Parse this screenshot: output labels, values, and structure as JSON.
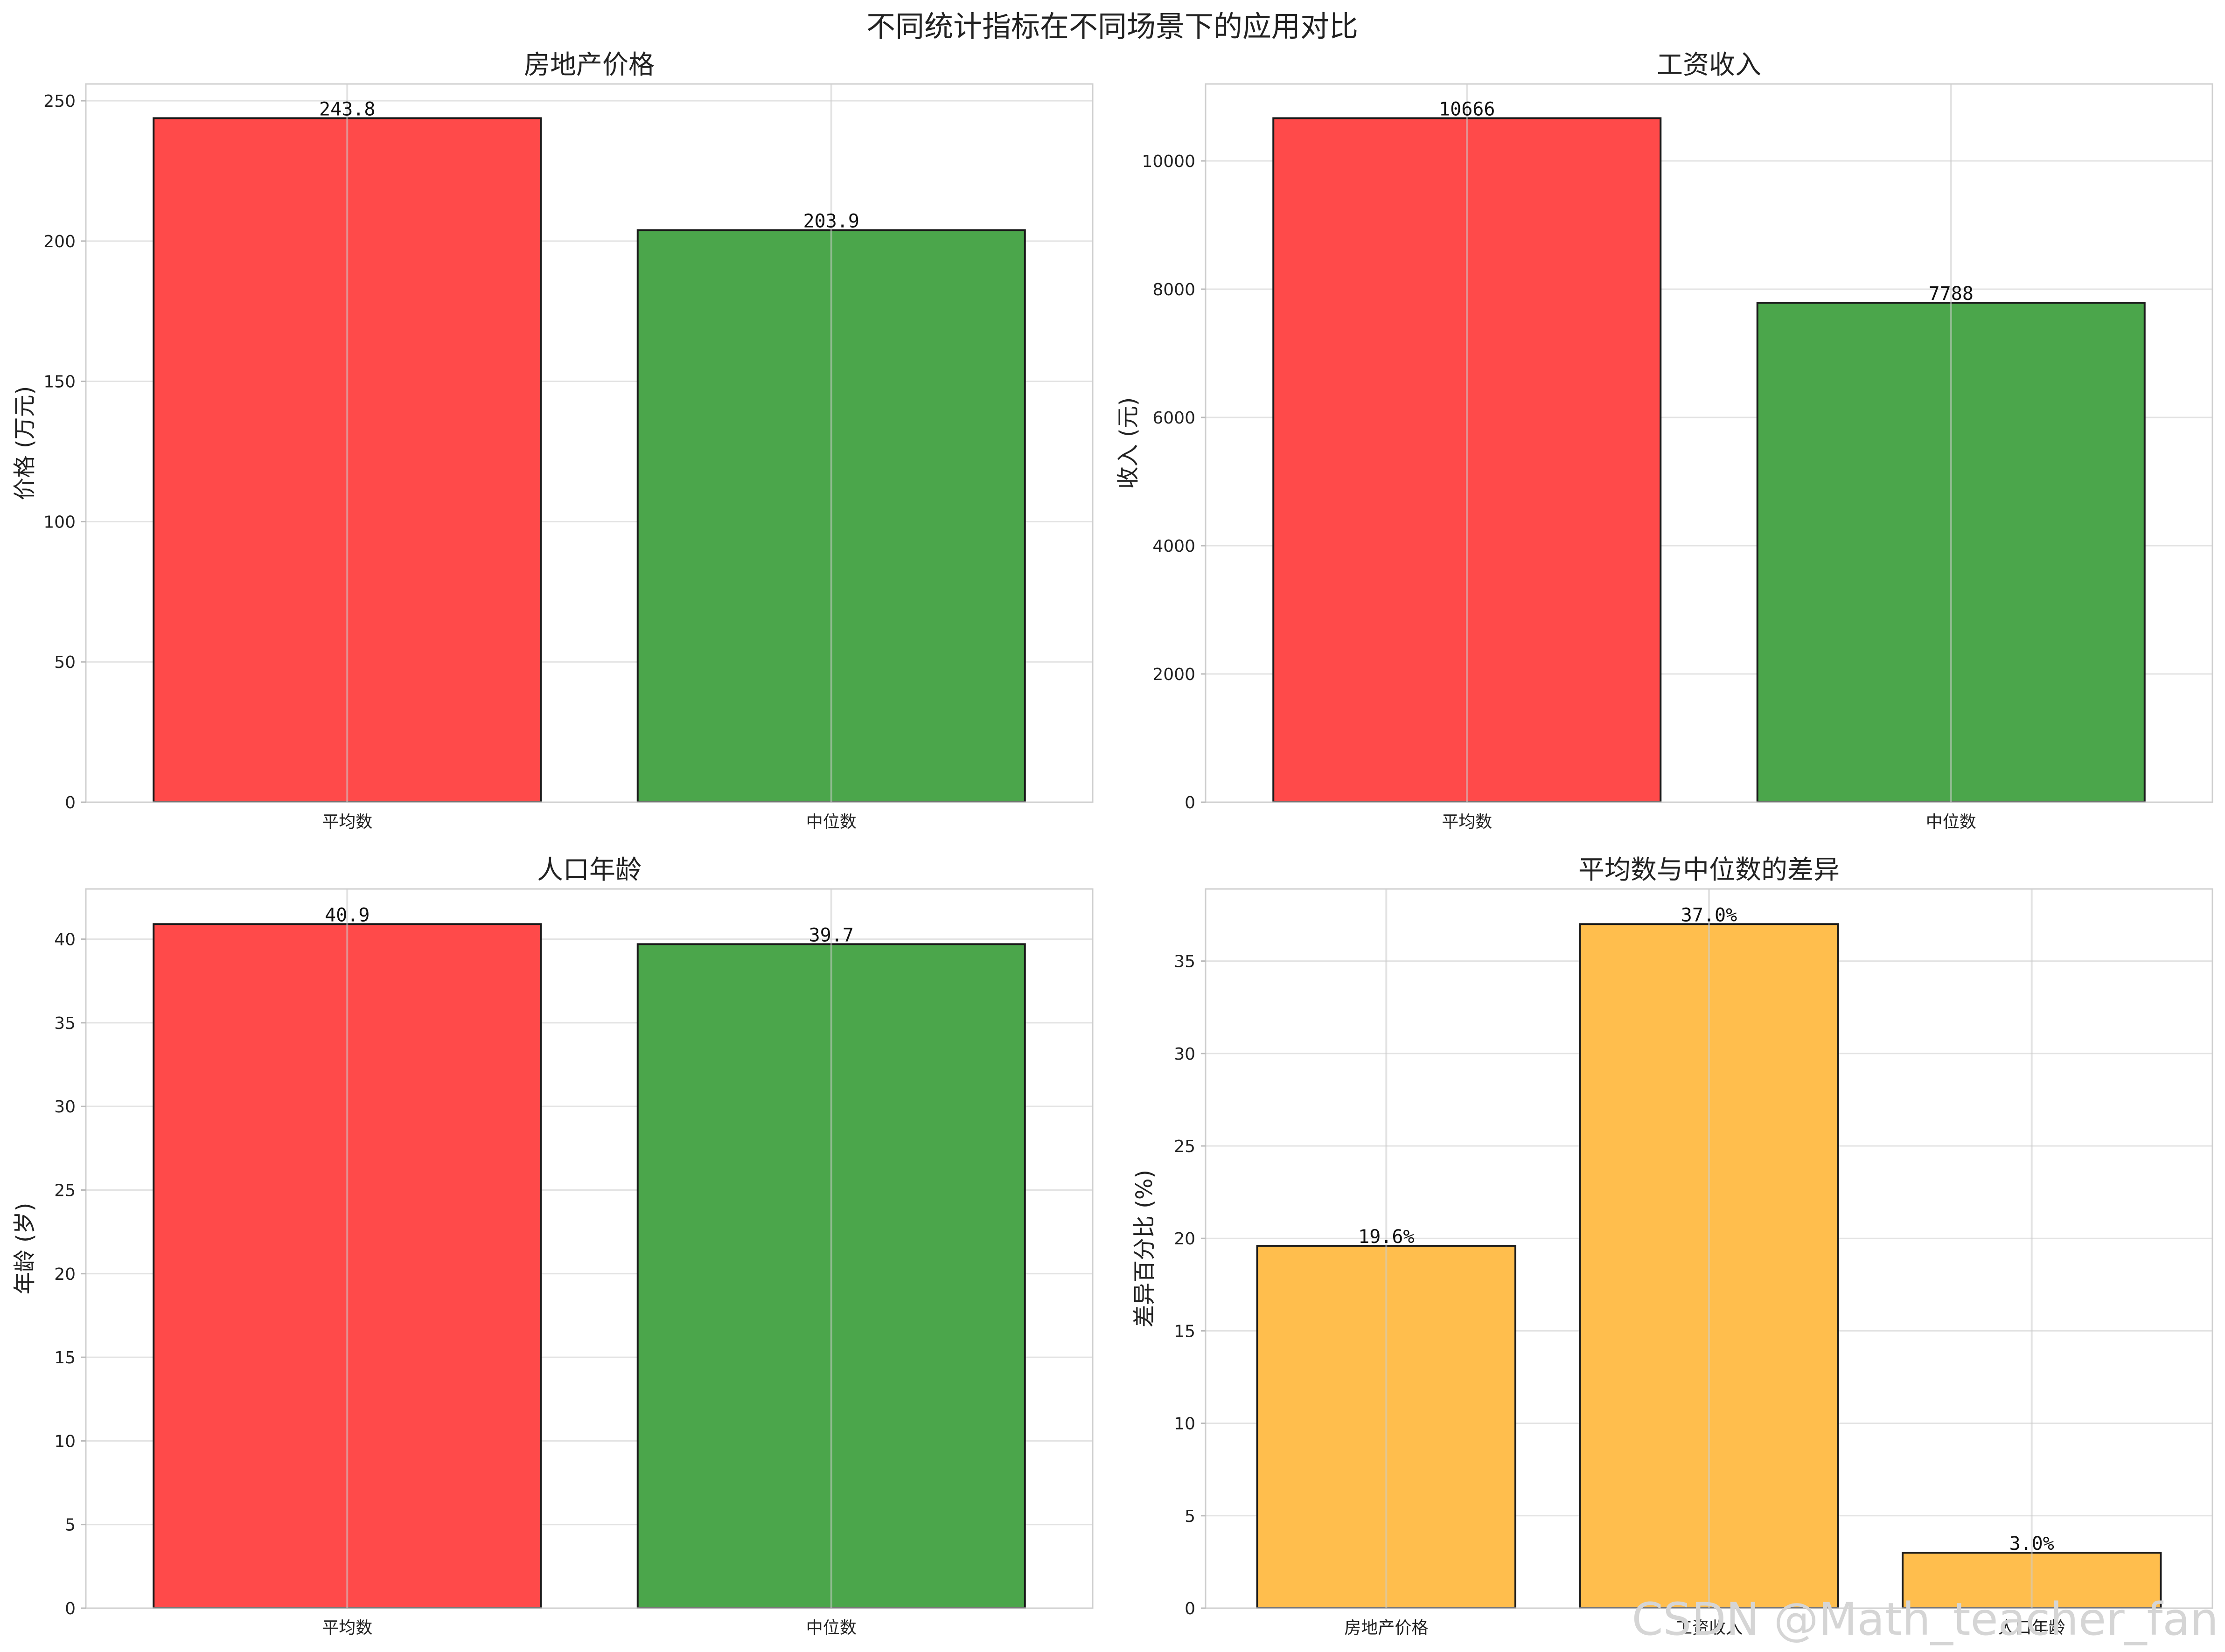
{
  "title": "不同统计指标在不同场景下的应用对比",
  "watermark": "CSDN @Math_teacher_fan",
  "colors": {
    "mean": "#ff4a4a",
    "median": "#4ba64b",
    "diff": "#ffbe4d"
  },
  "chart_data": [
    {
      "type": "bar",
      "title": "房地产价格",
      "ylabel": "价格 (万元)",
      "categories": [
        "平均数",
        "中位数"
      ],
      "values": [
        243.8,
        203.9
      ],
      "value_labels": [
        "243.8",
        "203.9"
      ],
      "ylim": [
        0,
        256
      ],
      "yticks": [
        0,
        50,
        100,
        150,
        200,
        250
      ],
      "bar_colors": [
        "mean",
        "median"
      ]
    },
    {
      "type": "bar",
      "title": "工资收入",
      "ylabel": "收入 (元)",
      "categories": [
        "平均数",
        "中位数"
      ],
      "values": [
        10666,
        7788
      ],
      "value_labels": [
        "10666",
        "7788"
      ],
      "ylim": [
        0,
        11200
      ],
      "yticks": [
        0,
        2000,
        4000,
        6000,
        8000,
        10000
      ],
      "bar_colors": [
        "mean",
        "median"
      ]
    },
    {
      "type": "bar",
      "title": "人口年龄",
      "ylabel": "年龄 (岁)",
      "categories": [
        "平均数",
        "中位数"
      ],
      "values": [
        40.9,
        39.7
      ],
      "value_labels": [
        "40.9",
        "39.7"
      ],
      "ylim": [
        0,
        43
      ],
      "yticks": [
        0,
        5,
        10,
        15,
        20,
        25,
        30,
        35,
        40
      ],
      "bar_colors": [
        "mean",
        "median"
      ]
    },
    {
      "type": "bar",
      "title": "平均数与中位数的差异",
      "ylabel": "差异百分比 (%)",
      "categories": [
        "房地产价格",
        "工资收入",
        "人口年龄"
      ],
      "values": [
        19.6,
        37.0,
        3.0
      ],
      "value_labels": [
        "19.6%",
        "37.0%",
        "3.0%"
      ],
      "ylim": [
        0,
        38.9
      ],
      "yticks": [
        0,
        5,
        10,
        15,
        20,
        25,
        30,
        35
      ],
      "bar_colors": [
        "diff",
        "diff",
        "diff"
      ]
    }
  ]
}
